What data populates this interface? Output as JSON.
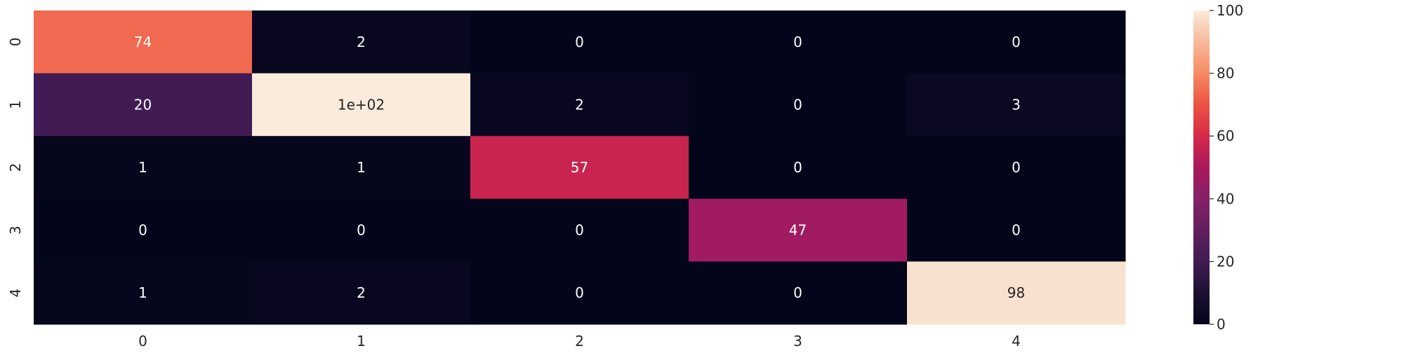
{
  "chart_data": {
    "type": "heatmap",
    "title": "",
    "xlabel": "",
    "ylabel": "",
    "x_tick_labels": [
      "0",
      "1",
      "2",
      "3",
      "4"
    ],
    "y_tick_labels": [
      "0",
      "1",
      "2",
      "3",
      "4"
    ],
    "values": [
      [
        74,
        2,
        0,
        0,
        0
      ],
      [
        20,
        102,
        2,
        0,
        3
      ],
      [
        1,
        1,
        57,
        0,
        0
      ],
      [
        0,
        0,
        0,
        47,
        0
      ],
      [
        1,
        2,
        0,
        0,
        98
      ]
    ],
    "annotations": [
      [
        "74",
        "2",
        "0",
        "0",
        "0"
      ],
      [
        "20",
        "1e+02",
        "2",
        "0",
        "3"
      ],
      [
        "1",
        "1",
        "57",
        "0",
        "0"
      ],
      [
        "0",
        "0",
        "0",
        "47",
        "0"
      ],
      [
        "1",
        "2",
        "0",
        "0",
        "98"
      ]
    ],
    "colorbar": {
      "vmin": 0,
      "vmax": 100,
      "tick_values": [
        0,
        20,
        40,
        60,
        80,
        100
      ],
      "tick_labels": [
        "0",
        "20",
        "40",
        "60",
        "80",
        "100"
      ],
      "colormap": "rocket"
    }
  }
}
